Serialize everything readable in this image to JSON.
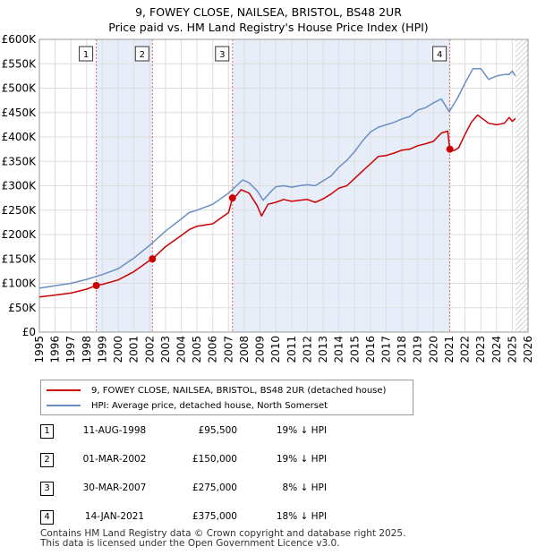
{
  "title": {
    "line1": "9, FOWEY CLOSE, NAILSEA, BRISTOL, BS48 2UR",
    "line2": "Price paid vs. HM Land Registry's House Price Index (HPI)"
  },
  "chart_data": {
    "type": "line",
    "title": "9, FOWEY CLOSE, NAILSEA, BRISTOL, BS48 2UR — Price paid vs. HM Land Registry's House Price Index (HPI)",
    "xlim": [
      1995,
      2026
    ],
    "ylim": [
      0,
      600000
    ],
    "x_ticks": [
      1995,
      1996,
      1997,
      1998,
      1999,
      2000,
      2001,
      2002,
      2003,
      2004,
      2005,
      2006,
      2007,
      2008,
      2009,
      2010,
      2011,
      2012,
      2013,
      2014,
      2015,
      2016,
      2017,
      2018,
      2019,
      2020,
      2021,
      2022,
      2023,
      2024,
      2025,
      2026
    ],
    "y_ticks": [
      {
        "value": 0,
        "label": "£0"
      },
      {
        "value": 50000,
        "label": "£50K"
      },
      {
        "value": 100000,
        "label": "£100K"
      },
      {
        "value": 150000,
        "label": "£150K"
      },
      {
        "value": 200000,
        "label": "£200K"
      },
      {
        "value": 250000,
        "label": "£250K"
      },
      {
        "value": 300000,
        "label": "£300K"
      },
      {
        "value": 350000,
        "label": "£350K"
      },
      {
        "value": 400000,
        "label": "£400K"
      },
      {
        "value": 450000,
        "label": "£450K"
      },
      {
        "value": 500000,
        "label": "£500K"
      },
      {
        "value": 550000,
        "label": "£550K"
      },
      {
        "value": 600000,
        "label": "£600K"
      }
    ],
    "shaded_spans": [
      [
        1998.61,
        2002.17
      ],
      [
        2007.25,
        2021.04
      ]
    ],
    "future_hatch_start": 2025.2,
    "series": [
      {
        "name": "9, FOWEY CLOSE, NAILSEA, BRISTOL, BS48 2UR (detached house)",
        "color": "#cc0000",
        "x": [
          1995.0,
          1996.0,
          1997.0,
          1998.0,
          1998.61,
          1999.0,
          2000.0,
          2001.0,
          2002.0,
          2002.17,
          2003.0,
          2004.0,
          2004.5,
          2005.0,
          2006.0,
          2007.0,
          2007.25,
          2007.5,
          2007.8,
          2008.3,
          2008.8,
          2009.1,
          2009.3,
          2009.5,
          2010.0,
          2010.5,
          2011.0,
          2011.5,
          2012.0,
          2012.5,
          2013.0,
          2013.5,
          2014.0,
          2014.5,
          2015.0,
          2015.5,
          2016.0,
          2016.5,
          2017.0,
          2017.5,
          2018.0,
          2018.5,
          2019.0,
          2019.5,
          2020.0,
          2020.5,
          2020.9,
          2021.04,
          2021.3,
          2021.6,
          2022.0,
          2022.4,
          2022.8,
          2023.0,
          2023.5,
          2024.0,
          2024.5,
          2024.8,
          2025.0,
          2025.2
        ],
        "y": [
          72000,
          76000,
          80000,
          88000,
          95500,
          98000,
          107000,
          124000,
          147000,
          150000,
          175000,
          198000,
          210000,
          217000,
          222000,
          245000,
          275000,
          280000,
          292000,
          285000,
          260000,
          238000,
          250000,
          262000,
          266000,
          272000,
          268000,
          270000,
          272000,
          266000,
          273000,
          283000,
          295000,
          300000,
          315000,
          330000,
          345000,
          360000,
          362000,
          367000,
          373000,
          375000,
          382000,
          386000,
          391000,
          408000,
          412000,
          375000,
          372000,
          378000,
          405000,
          430000,
          445000,
          440000,
          428000,
          425000,
          428000,
          440000,
          432000,
          438000
        ]
      },
      {
        "name": "HPI: Average price, detached house, North Somerset",
        "color": "#6b8fc4",
        "x": [
          1995.0,
          1996.0,
          1997.0,
          1998.0,
          1999.0,
          2000.0,
          2001.0,
          2002.0,
          2003.0,
          2004.0,
          2004.5,
          2005.0,
          2006.0,
          2007.0,
          2007.5,
          2007.9,
          2008.3,
          2008.8,
          2009.2,
          2009.6,
          2010.0,
          2010.5,
          2011.0,
          2011.5,
          2012.0,
          2012.5,
          2013.0,
          2013.5,
          2014.0,
          2014.5,
          2015.0,
          2015.5,
          2016.0,
          2016.5,
          2017.0,
          2017.5,
          2018.0,
          2018.5,
          2019.0,
          2019.5,
          2020.0,
          2020.5,
          2021.0,
          2021.5,
          2022.0,
          2022.5,
          2023.0,
          2023.5,
          2024.0,
          2024.5,
          2024.8,
          2025.0,
          2025.2
        ],
        "y": [
          90000,
          95000,
          100000,
          108000,
          118000,
          130000,
          152000,
          178000,
          207000,
          232000,
          245000,
          250000,
          262000,
          285000,
          300000,
          312000,
          306000,
          290000,
          270000,
          285000,
          298000,
          300000,
          297000,
          300000,
          302000,
          300000,
          310000,
          320000,
          338000,
          352000,
          370000,
          392000,
          410000,
          420000,
          425000,
          430000,
          437000,
          442000,
          455000,
          460000,
          470000,
          478000,
          452000,
          478000,
          510000,
          540000,
          540000,
          518000,
          525000,
          528000,
          528000,
          535000,
          525000
        ]
      }
    ],
    "sales": [
      {
        "n": "1",
        "x": 1998.61,
        "y": 95500
      },
      {
        "n": "2",
        "x": 2002.17,
        "y": 150000
      },
      {
        "n": "3",
        "x": 2007.25,
        "y": 275000
      },
      {
        "n": "4",
        "x": 2021.04,
        "y": 375000
      }
    ]
  },
  "legend": {
    "property": "9, FOWEY CLOSE, NAILSEA, BRISTOL, BS48 2UR (detached house)",
    "hpi": "HPI: Average price, detached house, North Somerset",
    "property_color": "#cc0000",
    "hpi_color": "#6b8fc4"
  },
  "sales_table": [
    {
      "n": "1",
      "date": "11-AUG-1998",
      "price": "£95,500",
      "hpi": "19% ↓ HPI"
    },
    {
      "n": "2",
      "date": "01-MAR-2002",
      "price": "£150,000",
      "hpi": "19% ↓ HPI"
    },
    {
      "n": "3",
      "date": "30-MAR-2007",
      "price": "£275,000",
      "hpi": "8% ↓ HPI"
    },
    {
      "n": "4",
      "date": "14-JAN-2021",
      "price": "£375,000",
      "hpi": "18% ↓ HPI"
    }
  ],
  "footer": {
    "line1": "Contains HM Land Registry data © Crown copyright and database right 2025.",
    "line2": "This data is licensed under the Open Government Licence v3.0."
  }
}
